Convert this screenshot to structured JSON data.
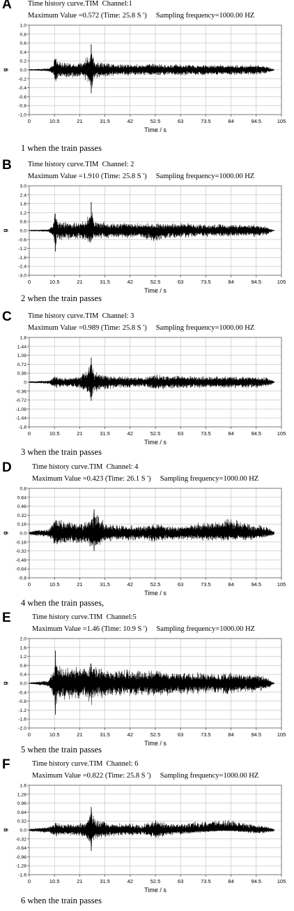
{
  "panels": [
    {
      "label": "A",
      "title": "Time history curve.TIM  Channel:1",
      "max_line": "Maximum Value =0.572 (Time: 25.8 S ')     Sampling frequency=1000.00 HZ",
      "caption": "1 when the train passes",
      "chart_data": {
        "type": "line",
        "xlabel": "Time / s",
        "ylabel": "g",
        "xlim": [
          0,
          105
        ],
        "ylim": [
          -1.0,
          1.0
        ],
        "xticks": [
          "0",
          "10.5",
          "21",
          "31.5",
          "42",
          "52.5",
          "63",
          "73.5",
          "84",
          "94.5",
          "105"
        ],
        "yticks": [
          "1.0",
          "0.8",
          "0.6",
          "0.4",
          "0.2",
          "0.0",
          "-0.2",
          "-0.4",
          "-0.6",
          "-0.8",
          "-1.0"
        ],
        "grid": true,
        "envelope": {
          "x": [
            0,
            8,
            10,
            10.9,
            12,
            16,
            21,
            24,
            25.8,
            27,
            31.5,
            36,
            42,
            47,
            52.5,
            58,
            63,
            68,
            73.5,
            79,
            84,
            89,
            94.5,
            99,
            101,
            102
          ],
          "upper": [
            0.01,
            0.04,
            0.12,
            0.42,
            0.2,
            0.18,
            0.18,
            0.3,
            0.572,
            0.25,
            0.17,
            0.13,
            0.15,
            0.12,
            0.15,
            0.12,
            0.14,
            0.12,
            0.13,
            0.12,
            0.12,
            0.12,
            0.12,
            0.08,
            0.04,
            0.01
          ],
          "lower": [
            -0.01,
            -0.04,
            -0.12,
            -0.4,
            -0.2,
            -0.18,
            -0.18,
            -0.28,
            -0.52,
            -0.24,
            -0.17,
            -0.13,
            -0.15,
            -0.12,
            -0.15,
            -0.12,
            -0.14,
            -0.12,
            -0.13,
            -0.12,
            -0.12,
            -0.12,
            -0.12,
            -0.08,
            -0.04,
            -0.01
          ]
        }
      }
    },
    {
      "label": "B",
      "title": "Time history curve.TIM  Channel: 2",
      "max_line": "Maximum Value =1.910 (Time: 25.8 S ')     Sampling frequency=1000.00 HZ",
      "caption": "2 when the train passes",
      "chart_data": {
        "type": "line",
        "xlabel": "Time / s",
        "ylabel": "g",
        "xlim": [
          0,
          105
        ],
        "ylim": [
          -3.0,
          3.0
        ],
        "xticks": [
          "0",
          "10.5",
          "21",
          "31.5",
          "42",
          "52.5",
          "63",
          "73.5",
          "84",
          "94.5",
          "105"
        ],
        "yticks": [
          "3.0",
          "2.4",
          "1.8",
          "1.2",
          "0.6",
          "0.0",
          "-0.6",
          "-1.2",
          "-1.8",
          "-2.4",
          "-3.0"
        ],
        "grid": true,
        "envelope": {
          "x": [
            0,
            8,
            10,
            10.9,
            12,
            16,
            21,
            24,
            25.8,
            27,
            31.5,
            36,
            42,
            47,
            52.5,
            58,
            63,
            68,
            73.5,
            79,
            84,
            89,
            94.5,
            99,
            101,
            102
          ],
          "upper": [
            0.02,
            0.1,
            0.5,
            1.5,
            0.7,
            0.6,
            0.6,
            0.8,
            1.91,
            0.7,
            0.6,
            0.55,
            0.6,
            0.5,
            0.55,
            0.5,
            0.55,
            0.45,
            0.45,
            0.45,
            0.45,
            0.45,
            0.45,
            0.3,
            0.1,
            0.02
          ],
          "lower": [
            -0.02,
            -0.1,
            -0.5,
            -1.4,
            -0.7,
            -0.6,
            -0.6,
            -0.7,
            -1.3,
            -0.6,
            -0.6,
            -0.5,
            -0.55,
            -0.5,
            -0.9,
            -0.5,
            -0.6,
            -0.45,
            -0.45,
            -0.45,
            -0.45,
            -0.45,
            -0.45,
            -0.3,
            -0.1,
            -0.02
          ]
        }
      }
    },
    {
      "label": "C",
      "title": "Time history curve.TIM  Channel: 3",
      "max_line": "Maximum Value =0.989 (Time: 25.8 S ')     Sampling frequency=1000.00 HZ",
      "caption": "3 when the train passes",
      "chart_data": {
        "type": "line",
        "xlabel": "Time / s",
        "ylabel": "",
        "xlim": [
          0,
          105
        ],
        "ylim": [
          -1.8,
          1.8
        ],
        "xticks": [
          "0",
          "10.5",
          "21",
          "31.5",
          "42",
          "52.5",
          "63",
          "73.5",
          "84",
          "94.5",
          "105"
        ],
        "yticks": [
          "1.8",
          "1.44",
          "1.08",
          "0.72",
          "0.36",
          "0",
          "-0.36",
          "-0.72",
          "-1.08",
          "-1.44",
          "-1.8"
        ],
        "grid": true,
        "envelope": {
          "x": [
            0,
            8,
            10,
            10.9,
            12,
            16,
            21,
            24,
            25.8,
            27,
            31.5,
            36,
            42,
            47,
            52.5,
            58,
            63,
            68,
            73.5,
            79,
            84,
            89,
            94.5,
            99,
            101,
            102
          ],
          "upper": [
            0.03,
            0.08,
            0.2,
            0.3,
            0.22,
            0.2,
            0.25,
            0.6,
            0.989,
            0.45,
            0.3,
            0.25,
            0.25,
            0.2,
            0.35,
            0.25,
            0.3,
            0.25,
            0.25,
            0.25,
            0.25,
            0.25,
            0.25,
            0.2,
            0.1,
            0.03
          ],
          "lower": [
            -0.03,
            -0.08,
            -0.2,
            -0.3,
            -0.22,
            -0.2,
            -0.25,
            -0.5,
            -0.75,
            -0.4,
            -0.3,
            -0.25,
            -0.25,
            -0.2,
            -0.35,
            -0.25,
            -0.3,
            -0.25,
            -0.25,
            -0.25,
            -0.25,
            -0.25,
            -0.25,
            -0.2,
            -0.1,
            -0.03
          ]
        }
      }
    },
    {
      "label": "D",
      "title": "Time history curve.TIM  Channel: 4",
      "max_line": "Maximum Value =0.423 (Time: 26.1 S ')     Sampling frequency=1000.00 HZ",
      "caption": "4 when the train passes,",
      "chart_data": {
        "type": "line",
        "xlabel": "Time / s",
        "ylabel": "g",
        "xlim": [
          0,
          105
        ],
        "ylim": [
          -0.8,
          0.8
        ],
        "xticks": [
          "0",
          "10.5",
          "21",
          "31.5",
          "42",
          "52.5",
          "63",
          "73.5",
          "84",
          "94.5",
          "105"
        ],
        "yticks": [
          "0.8",
          "0.64",
          "0.48",
          "0.32",
          "0.16",
          "0.0",
          "-0.16",
          "-0.32",
          "-0.48",
          "-0.64",
          "-0.8"
        ],
        "grid": true,
        "envelope": {
          "x": [
            0,
            8,
            10,
            10.9,
            12,
            16,
            21,
            24,
            25.8,
            27,
            31.5,
            36,
            42,
            47,
            52.5,
            58,
            63,
            68,
            73.5,
            79,
            84,
            89,
            94.5,
            99,
            101,
            102
          ],
          "upper": [
            0.04,
            0.08,
            0.2,
            0.3,
            0.25,
            0.22,
            0.2,
            0.25,
            0.3,
            0.423,
            0.2,
            0.16,
            0.14,
            0.12,
            0.2,
            0.14,
            0.14,
            0.18,
            0.22,
            0.2,
            0.3,
            0.2,
            0.16,
            0.12,
            0.06,
            0.03
          ],
          "lower": [
            -0.04,
            -0.08,
            -0.18,
            -0.28,
            -0.22,
            -0.2,
            -0.2,
            -0.22,
            -0.3,
            -0.32,
            -0.18,
            -0.15,
            -0.14,
            -0.12,
            -0.18,
            -0.13,
            -0.13,
            -0.14,
            -0.15,
            -0.14,
            -0.14,
            -0.14,
            -0.13,
            -0.1,
            -0.05,
            -0.03
          ]
        }
      }
    },
    {
      "label": "E",
      "title": "Time history curve.TIM  Channel:5",
      "max_line": "Maximum Value =1.46 (Time: 10.9 S ')     Sampling frequency=1000.00 HZ",
      "caption": "5 when the train passes",
      "chart_data": {
        "type": "line",
        "xlabel": "Time / s",
        "ylabel": "g",
        "xlim": [
          0,
          105
        ],
        "ylim": [
          -2.0,
          2.0
        ],
        "xticks": [
          "0",
          "10.5",
          "21",
          "31.5",
          "42",
          "52.5",
          "63",
          "73.5",
          "84",
          "94.5",
          "105"
        ],
        "yticks": [
          "2.0",
          "1.6",
          "1.2",
          "0.8",
          "0.4",
          "0.0",
          "-0.4",
          "-0.8",
          "-1.2",
          "-1.6",
          "-2.0"
        ],
        "grid": true,
        "envelope": {
          "x": [
            0,
            8,
            10,
            10.9,
            12,
            16,
            21,
            24,
            25.8,
            27,
            31.5,
            36,
            42,
            47,
            52.5,
            58,
            63,
            68,
            73.5,
            79,
            84,
            89,
            94.5,
            99,
            101,
            102
          ],
          "upper": [
            0.03,
            0.15,
            0.6,
            1.46,
            0.8,
            0.75,
            0.75,
            0.8,
            1.0,
            0.8,
            0.7,
            0.6,
            0.65,
            0.55,
            0.65,
            0.55,
            0.55,
            0.5,
            0.5,
            0.5,
            0.5,
            0.45,
            0.45,
            0.3,
            0.1,
            0.03
          ],
          "lower": [
            -0.03,
            -0.15,
            -0.6,
            -1.4,
            -0.8,
            -0.75,
            -0.75,
            -0.8,
            -1.2,
            -0.8,
            -0.7,
            -0.6,
            -0.65,
            -0.55,
            -0.65,
            -0.55,
            -0.55,
            -0.5,
            -0.5,
            -0.5,
            -0.5,
            -0.45,
            -0.45,
            -0.3,
            -0.1,
            -0.03
          ]
        }
      }
    },
    {
      "label": "F",
      "title": "Time history curve.TIM  Channel: 6",
      "max_line": "Maximum Value =0.822 (Time: 25.8 S ')     Sampling frequency=1000.00 HZ",
      "caption": "6 when the train passes",
      "chart_data": {
        "type": "line",
        "xlabel": "Time / s",
        "ylabel": "g",
        "xlim": [
          0,
          105
        ],
        "ylim": [
          -1.6,
          1.6
        ],
        "xticks": [
          "0",
          "10.5",
          "21",
          "31.5",
          "42",
          "52.5",
          "63",
          "73.5",
          "84",
          "94.5",
          "105"
        ],
        "yticks": [
          "1.6",
          "1.28",
          "0.96",
          "0.64",
          "0.32",
          "0.0",
          "-0.32",
          "-0.64",
          "-0.96",
          "-1.28",
          "-1.6"
        ],
        "grid": true,
        "envelope": {
          "x": [
            0,
            8,
            10,
            10.9,
            12,
            16,
            21,
            24,
            25.8,
            27,
            31.5,
            36,
            42,
            47,
            52.5,
            58,
            63,
            68,
            73.5,
            79,
            84,
            89,
            94.5,
            99,
            101,
            102
          ],
          "upper": [
            0.05,
            0.12,
            0.25,
            0.3,
            0.25,
            0.22,
            0.25,
            0.4,
            0.822,
            0.45,
            0.3,
            0.25,
            0.25,
            0.2,
            0.4,
            0.25,
            0.25,
            0.3,
            0.35,
            0.4,
            0.4,
            0.3,
            0.2,
            0.15,
            0.08,
            0.05
          ],
          "lower": [
            -0.05,
            -0.12,
            -0.22,
            -0.28,
            -0.22,
            -0.2,
            -0.22,
            -0.35,
            -0.75,
            -0.4,
            -0.28,
            -0.22,
            -0.22,
            -0.18,
            -0.35,
            -0.2,
            -0.2,
            -0.12,
            -0.1,
            -0.05,
            -0.05,
            -0.1,
            -0.15,
            -0.12,
            -0.08,
            -0.05
          ]
        }
      }
    }
  ]
}
